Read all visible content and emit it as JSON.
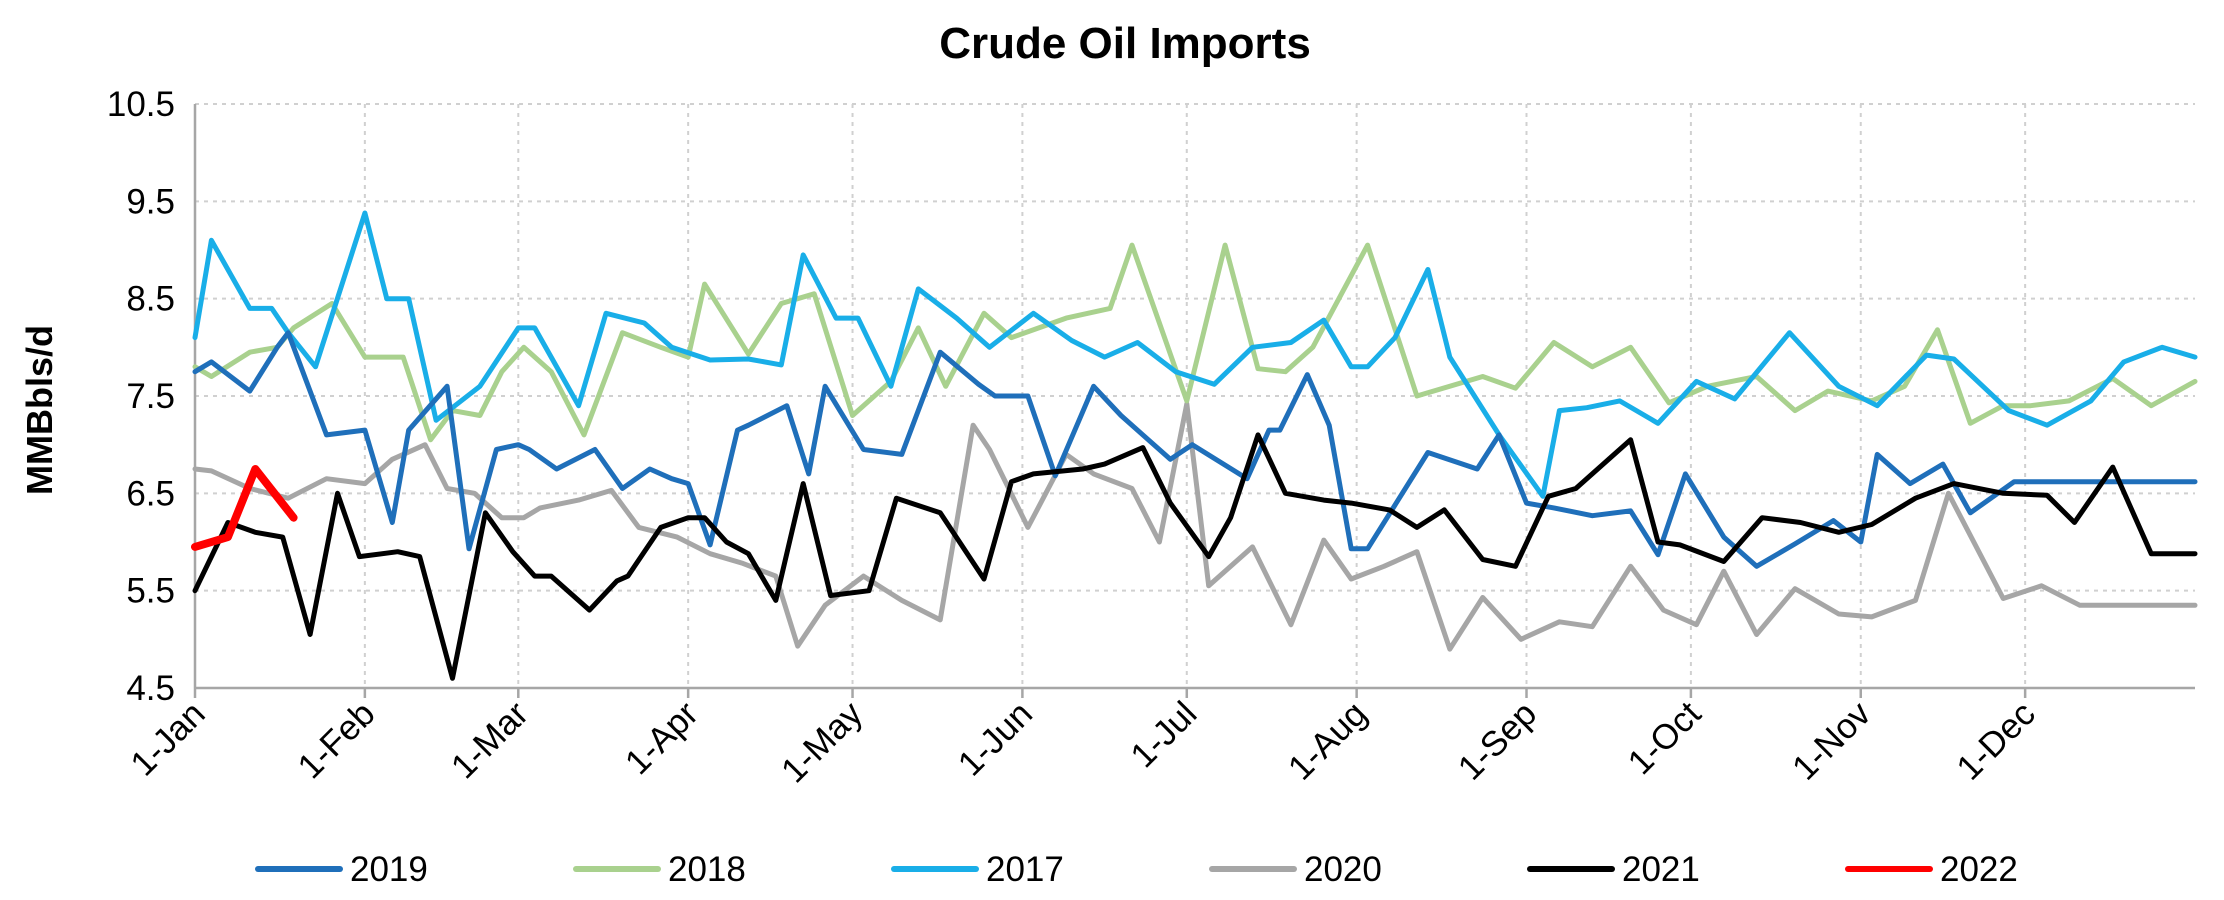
{
  "chart_data": {
    "type": "line",
    "title": "Crude Oil Imports",
    "ylabel": "MMBbls/d",
    "xlabel": "",
    "ylim": [
      4.5,
      10.5
    ],
    "yticks": [
      "4.5",
      "5.5",
      "6.5",
      "7.5",
      "8.5",
      "9.5",
      "10.5"
    ],
    "x_ticks": [
      {
        "label": "1-Jan",
        "day": 1
      },
      {
        "label": "1-Feb",
        "day": 32
      },
      {
        "label": "1-Mar",
        "day": 60
      },
      {
        "label": "1-Apr",
        "day": 91
      },
      {
        "label": "1-May",
        "day": 121
      },
      {
        "label": "1-Jun",
        "day": 152
      },
      {
        "label": "1-Jul",
        "day": 182
      },
      {
        "label": "1-Aug",
        "day": 213
      },
      {
        "label": "1-Sep",
        "day": 244
      },
      {
        "label": "1-Oct",
        "day": 274
      },
      {
        "label": "1-Nov",
        "day": 305
      },
      {
        "label": "1-Dec",
        "day": 335
      }
    ],
    "x_unit": "day of year",
    "xlim": [
      1,
      366
    ],
    "grid": true,
    "legend_position": "bottom",
    "series": [
      {
        "name": "2019",
        "color": "#1f6fba",
        "x": [
          1,
          4,
          11,
          16,
          18,
          25,
          32,
          37,
          40,
          47,
          51,
          56,
          60,
          62,
          67,
          74,
          79,
          84,
          88,
          91,
          95,
          100,
          102,
          109,
          113,
          116,
          123,
          130,
          137,
          144,
          147,
          153,
          158,
          165,
          170,
          179,
          183,
          193,
          197,
          199,
          204,
          208,
          212,
          215,
          226,
          235,
          239,
          244,
          249,
          256,
          263,
          268,
          273,
          280,
          286,
          293,
          300,
          305,
          308,
          314,
          320,
          325,
          333,
          340,
          347,
          356,
          361,
          366
        ],
        "values": [
          7.75,
          7.85,
          7.55,
          8.0,
          8.15,
          7.1,
          7.15,
          6.2,
          7.15,
          7.6,
          5.93,
          6.95,
          7.0,
          6.95,
          6.75,
          6.95,
          6.55,
          6.75,
          6.65,
          6.6,
          5.97,
          7.15,
          7.2,
          7.4,
          6.7,
          7.6,
          6.95,
          6.9,
          7.95,
          7.62,
          7.5,
          7.5,
          6.68,
          7.6,
          7.3,
          6.85,
          7.0,
          6.65,
          7.15,
          7.15,
          7.72,
          7.2,
          5.93,
          5.93,
          6.92,
          6.75,
          7.1,
          6.4,
          6.35,
          6.27,
          6.32,
          5.87,
          6.7,
          6.05,
          5.75,
          5.98,
          6.22,
          6.0,
          6.9,
          6.6,
          6.8,
          6.3,
          6.62,
          6.62,
          6.62,
          6.62,
          6.62,
          6.62
        ]
      },
      {
        "name": "2018",
        "color": "#a9d18e",
        "x": [
          1,
          4,
          11,
          16,
          19,
          26,
          32,
          39,
          44,
          48,
          53,
          57,
          61,
          66,
          72,
          79,
          86,
          91,
          94,
          102,
          108,
          114,
          121,
          128,
          133,
          138,
          145,
          150,
          155,
          160,
          168,
          172,
          182,
          189,
          195,
          200,
          205,
          215,
          224,
          236,
          242,
          249,
          256,
          263,
          270,
          277,
          286,
          293,
          299,
          307,
          313,
          319,
          325,
          331,
          336,
          343,
          351,
          358,
          366
        ],
        "values": [
          7.8,
          7.7,
          7.95,
          8.0,
          8.2,
          8.45,
          7.9,
          7.9,
          7.05,
          7.35,
          7.3,
          7.75,
          8.0,
          7.75,
          7.1,
          8.15,
          8.0,
          7.9,
          8.65,
          7.93,
          8.45,
          8.55,
          7.3,
          7.65,
          8.2,
          7.6,
          8.35,
          8.1,
          8.2,
          8.3,
          8.4,
          9.05,
          7.45,
          9.05,
          7.78,
          7.75,
          8.0,
          9.05,
          7.5,
          7.7,
          7.58,
          8.05,
          7.8,
          8.0,
          7.43,
          7.6,
          7.7,
          7.35,
          7.55,
          7.45,
          7.6,
          8.18,
          7.22,
          7.4,
          7.4,
          7.45,
          7.68,
          7.4,
          7.65
        ]
      },
      {
        "name": "2017",
        "color": "#19aee8",
        "x": [
          1,
          4,
          11,
          15,
          18,
          23,
          32,
          36,
          40,
          45,
          53,
          60,
          63,
          71,
          76,
          83,
          88,
          95,
          102,
          108,
          112,
          118,
          122,
          128,
          133,
          140,
          146,
          154,
          161,
          167,
          173,
          180,
          187,
          194,
          201,
          207,
          212,
          215,
          220,
          226,
          230,
          239,
          247,
          250,
          255,
          261,
          268,
          275,
          282,
          292,
          301,
          308,
          317,
          322,
          332,
          339,
          347,
          353,
          360,
          366
        ],
        "values": [
          8.1,
          9.1,
          8.4,
          8.4,
          8.15,
          7.8,
          9.38,
          8.5,
          8.5,
          7.25,
          7.6,
          8.2,
          8.2,
          7.4,
          8.35,
          8.25,
          8.0,
          7.87,
          7.88,
          7.82,
          8.95,
          8.3,
          8.3,
          7.6,
          8.6,
          8.3,
          8.0,
          8.35,
          8.07,
          7.9,
          8.05,
          7.75,
          7.62,
          8.0,
          8.05,
          8.28,
          7.8,
          7.8,
          8.1,
          8.8,
          7.9,
          7.1,
          6.47,
          7.35,
          7.38,
          7.45,
          7.22,
          7.65,
          7.47,
          8.15,
          7.6,
          7.4,
          7.92,
          7.88,
          7.35,
          7.2,
          7.45,
          7.85,
          8.0,
          7.9
        ]
      },
      {
        "name": "2020",
        "color": "#a6a6a6",
        "x": [
          1,
          4,
          11,
          18,
          25,
          32,
          37,
          43,
          47,
          52,
          57,
          61,
          64,
          71,
          77,
          82,
          89,
          95,
          101,
          107,
          111,
          116,
          123,
          130,
          137,
          143,
          146,
          153,
          160,
          165,
          172,
          177,
          182,
          186,
          194,
          201,
          207,
          212,
          218,
          224,
          230,
          236,
          243,
          250,
          256,
          263,
          269,
          275,
          280,
          286,
          293,
          301,
          307,
          315,
          321,
          331,
          338,
          345,
          352,
          359,
          366
        ],
        "values": [
          6.75,
          6.73,
          6.55,
          6.45,
          6.65,
          6.6,
          6.85,
          7.0,
          6.55,
          6.5,
          6.25,
          6.25,
          6.35,
          6.43,
          6.53,
          6.15,
          6.05,
          5.88,
          5.78,
          5.65,
          4.93,
          5.35,
          5.65,
          5.4,
          5.2,
          7.2,
          6.95,
          6.15,
          6.9,
          6.7,
          6.55,
          6.0,
          7.42,
          5.55,
          5.95,
          5.15,
          6.02,
          5.62,
          5.75,
          5.9,
          4.9,
          5.43,
          5.0,
          5.18,
          5.13,
          5.75,
          5.3,
          5.15,
          5.7,
          5.05,
          5.52,
          5.26,
          5.23,
          5.4,
          6.5,
          5.42,
          5.55,
          5.35,
          5.35,
          5.35,
          5.35
        ]
      },
      {
        "name": "2021",
        "color": "#000000",
        "x": [
          1,
          7,
          12,
          17,
          22,
          27,
          31,
          38,
          42,
          48,
          54,
          59,
          63,
          66,
          73,
          78,
          80,
          86,
          91,
          94,
          98,
          102,
          107,
          112,
          117,
          124,
          129,
          137,
          145,
          150,
          154,
          163,
          167,
          174,
          179,
          186,
          190,
          195,
          200,
          207,
          212,
          219,
          224,
          229,
          236,
          242,
          248,
          253,
          263,
          268,
          272,
          280,
          287,
          294,
          301,
          307,
          315,
          322,
          331,
          339,
          344,
          351,
          358,
          363,
          366
        ],
        "values": [
          5.5,
          6.2,
          6.1,
          6.05,
          5.05,
          6.5,
          5.85,
          5.9,
          5.85,
          4.6,
          6.3,
          5.9,
          5.65,
          5.65,
          5.3,
          5.6,
          5.65,
          6.15,
          6.25,
          6.25,
          6.0,
          5.88,
          5.4,
          6.6,
          5.45,
          5.5,
          6.45,
          6.3,
          5.62,
          6.62,
          6.7,
          6.75,
          6.8,
          6.97,
          6.4,
          5.85,
          6.25,
          7.1,
          6.5,
          6.43,
          6.4,
          6.33,
          6.15,
          6.33,
          5.82,
          5.75,
          6.47,
          6.55,
          7.05,
          6.0,
          5.97,
          5.8,
          6.25,
          6.2,
          6.1,
          6.18,
          6.45,
          6.6,
          6.5,
          6.48,
          6.2,
          6.77,
          5.88,
          5.88,
          5.88
        ]
      },
      {
        "name": "2022",
        "color": "#ff0000",
        "x": [
          1,
          7,
          12,
          19
        ],
        "values": [
          5.95,
          6.05,
          6.75,
          6.25
        ]
      }
    ]
  }
}
